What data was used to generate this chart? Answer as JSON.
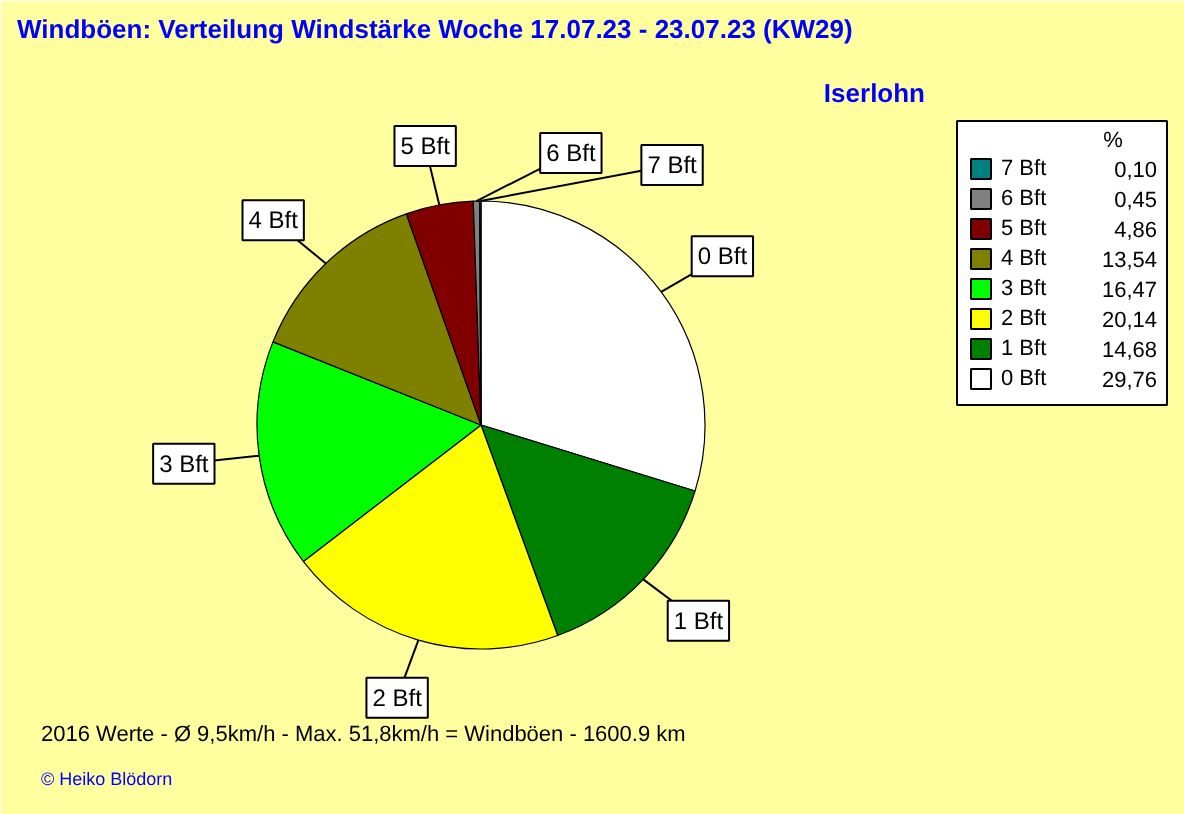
{
  "chart_data": {
    "type": "pie",
    "title": "Windböen: Verteilung Windstärke  Woche 17.07.23 - 23.07.23 (KW29)",
    "subtitle": "Iserlohn",
    "legend_title": "%",
    "categories": [
      "0 Bft",
      "1 Bft",
      "2 Bft",
      "3 Bft",
      "4 Bft",
      "5 Bft",
      "6 Bft",
      "7 Bft"
    ],
    "values": [
      29.76,
      14.68,
      20.14,
      16.47,
      13.54,
      4.86,
      0.45,
      0.1
    ],
    "value_labels": [
      "29,76",
      "14,68",
      "20,14",
      "16,47",
      "13,54",
      "4,86",
      "0,45",
      "0,10"
    ],
    "colors": [
      "#ffffff",
      "#008000",
      "#ffff00",
      "#00ff00",
      "#808000",
      "#800000",
      "#808080",
      "#008080"
    ],
    "legend": "right",
    "annotations": [
      "2016 Werte   -   Ø 9,5km/h  -  Max. 51,8km/h = Windböen   -   1600.9 km",
      "© Heiko Blödorn"
    ]
  }
}
